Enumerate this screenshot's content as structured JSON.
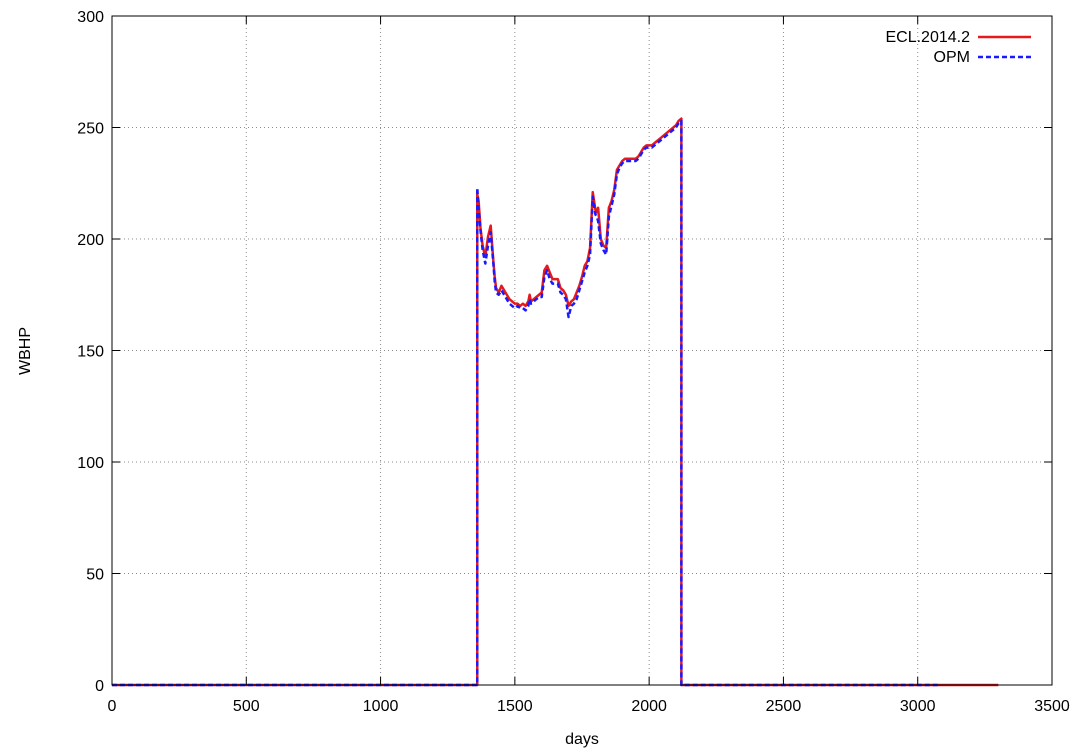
{
  "chart_data": {
    "type": "line",
    "title": "",
    "xlabel": "days",
    "ylabel": "WBHP",
    "xlim": [
      0,
      3500
    ],
    "ylim": [
      0,
      300
    ],
    "xticks": [
      0,
      500,
      1000,
      1500,
      2000,
      2500,
      3000,
      3500
    ],
    "yticks": [
      0,
      50,
      100,
      150,
      200,
      250,
      300
    ],
    "grid": true,
    "legend_position": "top-right",
    "series": [
      {
        "name": "ECL.2014.2",
        "color": "#e41a1c",
        "style": "solid",
        "x": [
          0,
          1350,
          1360,
          1360,
          1365,
          1372,
          1380,
          1390,
          1400,
          1410,
          1420,
          1425,
          1430,
          1440,
          1450,
          1460,
          1470,
          1480,
          1490,
          1500,
          1510,
          1520,
          1530,
          1540,
          1550,
          1555,
          1560,
          1570,
          1580,
          1590,
          1600,
          1610,
          1620,
          1630,
          1640,
          1650,
          1660,
          1670,
          1680,
          1690,
          1700,
          1710,
          1720,
          1730,
          1740,
          1750,
          1760,
          1770,
          1780,
          1790,
          1800,
          1805,
          1810,
          1820,
          1830,
          1840,
          1850,
          1860,
          1870,
          1880,
          1890,
          1900,
          1910,
          1920,
          1930,
          1940,
          1950,
          1960,
          1970,
          1980,
          1990,
          2000,
          2010,
          2020,
          2030,
          2040,
          2050,
          2060,
          2070,
          2080,
          2090,
          2100,
          2110,
          2120,
          2120,
          2130,
          2500,
          3000,
          3300
        ],
        "y": [
          0,
          0,
          0,
          220,
          217,
          205,
          197,
          192,
          201,
          206,
          190,
          183,
          178,
          176,
          179,
          177,
          175,
          173,
          172,
          171,
          171,
          170,
          171,
          170,
          172,
          175,
          172,
          173,
          174,
          175,
          176,
          186,
          188,
          185,
          182,
          182,
          182,
          178,
          177,
          175,
          170,
          172,
          173,
          176,
          179,
          183,
          188,
          190,
          196,
          221,
          213,
          212,
          214,
          200,
          197,
          196,
          214,
          217,
          222,
          231,
          233,
          235,
          236,
          236,
          236,
          236,
          236,
          237,
          239,
          241,
          242,
          242,
          242,
          243,
          244,
          245,
          246,
          247,
          248,
          249,
          250,
          251,
          253,
          254,
          0,
          0,
          0,
          0,
          0
        ]
      },
      {
        "name": "OPM",
        "color": "#1a1aff",
        "style": "dashed",
        "x": [
          0,
          1350,
          1360,
          1360,
          1365,
          1372,
          1380,
          1390,
          1400,
          1410,
          1420,
          1425,
          1430,
          1440,
          1450,
          1460,
          1470,
          1480,
          1490,
          1500,
          1510,
          1520,
          1530,
          1540,
          1550,
          1555,
          1560,
          1570,
          1580,
          1590,
          1600,
          1610,
          1620,
          1630,
          1640,
          1650,
          1660,
          1670,
          1680,
          1690,
          1700,
          1710,
          1720,
          1730,
          1740,
          1750,
          1760,
          1770,
          1780,
          1790,
          1800,
          1805,
          1810,
          1820,
          1830,
          1840,
          1850,
          1860,
          1870,
          1880,
          1890,
          1900,
          1910,
          1920,
          1930,
          1940,
          1950,
          1960,
          1970,
          1980,
          1990,
          2000,
          2010,
          2020,
          2030,
          2040,
          2050,
          2060,
          2070,
          2080,
          2090,
          2100,
          2110,
          2120,
          2120,
          2130,
          2500,
          3000,
          3080
        ],
        "y": [
          0,
          0,
          0,
          223,
          214,
          204,
          195,
          189,
          197,
          203,
          189,
          181,
          176,
          175,
          177,
          175,
          173,
          171,
          170,
          169,
          170,
          169,
          169,
          168,
          170,
          173,
          171,
          172,
          173,
          174,
          174,
          183,
          186,
          182,
          180,
          180,
          180,
          176,
          175,
          173,
          165,
          170,
          171,
          173,
          177,
          181,
          185,
          188,
          193,
          219,
          211,
          210,
          208,
          198,
          195,
          193,
          210,
          215,
          220,
          229,
          232,
          234,
          235,
          235,
          235,
          235,
          235,
          236,
          238,
          240,
          241,
          241,
          241,
          242,
          243,
          244,
          245,
          246,
          247,
          248,
          249,
          250,
          252,
          253,
          0,
          0,
          0,
          0,
          0
        ]
      }
    ]
  }
}
